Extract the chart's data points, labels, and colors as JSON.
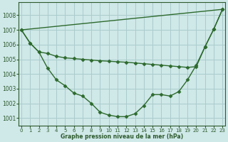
{
  "line1_no_marker": {
    "x": [
      0,
      23
    ],
    "y": [
      1007.0,
      1008.4
    ],
    "color": "#2d6a2d",
    "linewidth": 1.0,
    "linestyle": "-"
  },
  "line2_ushape": {
    "x": [
      0,
      1,
      2,
      3,
      4,
      5,
      6,
      7,
      8,
      9,
      10,
      11,
      12,
      13,
      14,
      15,
      16,
      17,
      18,
      19,
      20,
      21,
      22,
      23
    ],
    "y": [
      1007.0,
      1006.1,
      1005.5,
      1004.4,
      1003.6,
      1003.2,
      1002.7,
      1002.5,
      1002.0,
      1001.4,
      1001.2,
      1001.1,
      1001.1,
      1001.3,
      1001.85,
      1002.6,
      1002.6,
      1002.5,
      1002.8,
      1003.6,
      1004.6,
      1005.85,
      1007.05,
      1008.4
    ],
    "color": "#2d6a2d",
    "linewidth": 1.0,
    "linestyle": "-"
  },
  "line3_flat": {
    "x": [
      0,
      1,
      2,
      3,
      4,
      5,
      6,
      7,
      8,
      9,
      10,
      11,
      12,
      13,
      14,
      15,
      16,
      17,
      18,
      19,
      20,
      21,
      22,
      23
    ],
    "y": [
      1007.0,
      1006.1,
      1005.5,
      1005.4,
      1005.2,
      1005.1,
      1005.05,
      1005.0,
      1004.95,
      1004.9,
      1004.87,
      1004.83,
      1004.8,
      1004.75,
      1004.7,
      1004.65,
      1004.6,
      1004.55,
      1004.5,
      1004.45,
      1004.5,
      1005.85,
      1007.05,
      1008.4
    ],
    "color": "#2d6a2d",
    "linewidth": 1.0,
    "linestyle": "-"
  },
  "ylim": [
    1000.5,
    1008.9
  ],
  "xlim": [
    -0.3,
    23.3
  ],
  "yticks": [
    1001,
    1002,
    1003,
    1004,
    1005,
    1006,
    1007,
    1008
  ],
  "xticks": [
    0,
    1,
    2,
    3,
    4,
    5,
    6,
    7,
    8,
    9,
    10,
    11,
    12,
    13,
    14,
    15,
    16,
    17,
    18,
    19,
    20,
    21,
    22,
    23
  ],
  "xlabel": "Graphe pression niveau de la mer (hPa)",
  "bg_color": "#cfe8e8",
  "grid_color": "#aacccc",
  "line_color": "#2d5a2d",
  "marker": "D",
  "markersize": 2.5,
  "tick_fontsize": 5.0,
  "xlabel_fontsize": 5.5
}
